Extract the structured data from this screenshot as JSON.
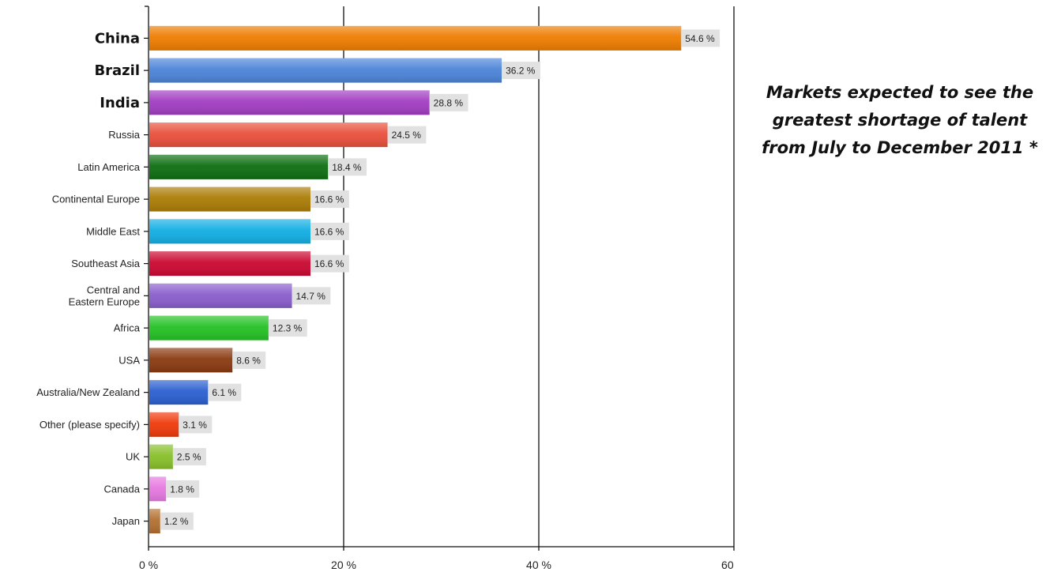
{
  "title_lines": [
    "Markets expected to see the",
    "greatest shortage of talent",
    "from July to December 2011 *"
  ],
  "chart_data": {
    "type": "bar",
    "orientation": "horizontal",
    "categories": [
      "China",
      "Brazil",
      "India",
      "Russia",
      "Latin America",
      "Continental Europe",
      "Middle East",
      "Southeast Asia",
      "Central and Eastern Europe",
      "Africa",
      "USA",
      "Australia/New Zealand",
      "Other (please specify)",
      "UK",
      "Canada",
      "Japan"
    ],
    "category_lines": [
      [
        "China"
      ],
      [
        "Brazil"
      ],
      [
        "India"
      ],
      [
        "Russia"
      ],
      [
        "Latin America"
      ],
      [
        "Continental Europe"
      ],
      [
        "Middle East"
      ],
      [
        "Southeast Asia"
      ],
      [
        "Central and",
        "Eastern Europe"
      ],
      [
        "Africa"
      ],
      [
        "USA"
      ],
      [
        "Australia/New Zealand"
      ],
      [
        "Other (please specify)"
      ],
      [
        "UK"
      ],
      [
        "Canada"
      ],
      [
        "Japan"
      ]
    ],
    "emphasized": [
      "China",
      "Brazil",
      "India"
    ],
    "values": [
      54.6,
      36.2,
      28.8,
      24.5,
      18.4,
      16.6,
      16.6,
      16.6,
      14.7,
      12.3,
      8.6,
      6.1,
      3.1,
      2.5,
      1.8,
      1.2
    ],
    "value_labels": [
      "54.6 %",
      "36.2 %",
      "28.8 %",
      "24.5 %",
      "18.4 %",
      "16.6 %",
      "16.6 %",
      "16.6 %",
      "14.7 %",
      "12.3 %",
      "8.6 %",
      "6.1 %",
      "3.1 %",
      "2.5 %",
      "1.8 %",
      "1.2 %"
    ],
    "colors": [
      "#ee7c00",
      "#4c84d8",
      "#a23dc2",
      "#e94f3a",
      "#0e6e12",
      "#ab7c06",
      "#12aee4",
      "#cb0831",
      "#8a5dcc",
      "#24c224",
      "#8a3a10",
      "#2b5fd0",
      "#ef3a0b",
      "#88c02a",
      "#e678e0",
      "#b27030"
    ],
    "xlim": [
      0,
      60
    ],
    "xticks": [
      0,
      20,
      40,
      60
    ],
    "xtick_labels": [
      "0 %",
      "20 %",
      "40 %",
      "60 %"
    ],
    "grid": true,
    "legend": "none"
  }
}
